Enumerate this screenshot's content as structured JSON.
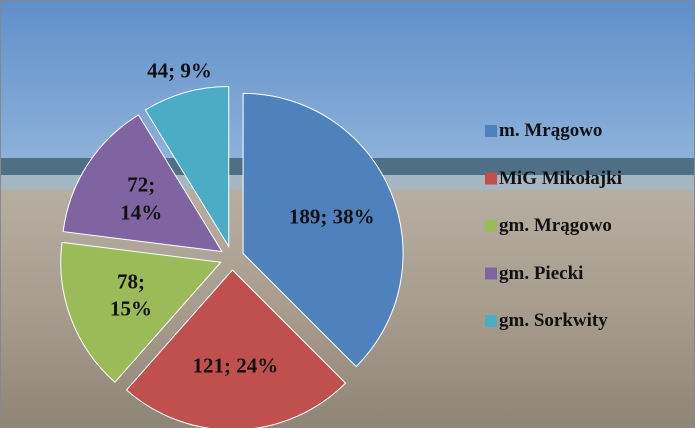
{
  "chart_data": {
    "type": "pie",
    "categories": [
      "m. Mrągowo",
      "MiG Mikołajki",
      "gm. Mrągowo",
      "gm. Piecki",
      "gm. Sorkwity"
    ],
    "values": [
      189,
      121,
      78,
      72,
      44
    ],
    "value_labels": [
      "189; 38%",
      "121; 24%",
      "78; 15%",
      "72; 14%",
      "44; 9%"
    ],
    "colors": [
      "#4f81bd",
      "#c0504d",
      "#9bbb59",
      "#8064a2",
      "#4bacc6"
    ],
    "legend": "right"
  }
}
